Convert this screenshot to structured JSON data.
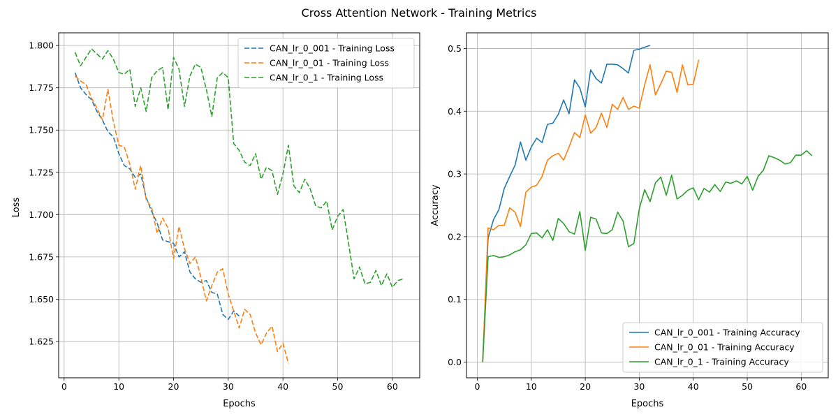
{
  "figure": {
    "suptitle": "Cross Attention Network - Training Metrics"
  },
  "chart_data": [
    {
      "type": "line",
      "title": "",
      "xlabel": "Epochs",
      "ylabel": "Loss",
      "xlim": [
        -1,
        65
      ],
      "ylim": [
        1.6035,
        1.8075
      ],
      "xticks": [
        0,
        10,
        20,
        30,
        40,
        50,
        60
      ],
      "yticks": [
        1.625,
        1.65,
        1.675,
        1.7,
        1.725,
        1.75,
        1.775,
        1.8
      ],
      "ytick_labels": [
        "1.625",
        "1.650",
        "1.675",
        "1.700",
        "1.725",
        "1.750",
        "1.775",
        "1.800"
      ],
      "grid": true,
      "line_style": "dashed",
      "legend": "top-right",
      "series": [
        {
          "name": "CAN_lr_0_001 - Training Loss",
          "color": "#1f77b4",
          "x": [
            2,
            3,
            4,
            5,
            6,
            7,
            8,
            9,
            10,
            11,
            12,
            13,
            14,
            15,
            16,
            17,
            18,
            19,
            20,
            21,
            22,
            23,
            24,
            25,
            26,
            27,
            28,
            29,
            30,
            31,
            32
          ],
          "values": [
            1.784,
            1.775,
            1.771,
            1.768,
            1.761,
            1.756,
            1.749,
            1.746,
            1.736,
            1.729,
            1.727,
            1.722,
            1.724,
            1.71,
            1.702,
            1.695,
            1.685,
            1.684,
            1.683,
            1.675,
            1.678,
            1.666,
            1.662,
            1.66,
            1.661,
            1.654,
            1.653,
            1.641,
            1.638,
            1.643,
            1.64
          ]
        },
        {
          "name": "CAN_lr_0_01 - Training Loss",
          "color": "#ff7f0e",
          "x": [
            2,
            3,
            4,
            5,
            6,
            7,
            8,
            9,
            10,
            11,
            12,
            13,
            14,
            15,
            16,
            17,
            18,
            19,
            20,
            21,
            22,
            23,
            24,
            25,
            26,
            27,
            28,
            29,
            30,
            31,
            32,
            33,
            34,
            35,
            36,
            37,
            38,
            39,
            40,
            41
          ],
          "values": [
            1.782,
            1.779,
            1.777,
            1.769,
            1.763,
            1.756,
            1.774,
            1.755,
            1.741,
            1.74,
            1.73,
            1.715,
            1.729,
            1.709,
            1.704,
            1.689,
            1.698,
            1.692,
            1.674,
            1.693,
            1.68,
            1.671,
            1.675,
            1.663,
            1.649,
            1.658,
            1.666,
            1.668,
            1.653,
            1.643,
            1.633,
            1.644,
            1.641,
            1.63,
            1.623,
            1.63,
            1.634,
            1.619,
            1.624,
            1.612
          ]
        },
        {
          "name": "CAN_lr_0_1 - Training Loss",
          "color": "#2ca02c",
          "x": [
            2,
            3,
            4,
            5,
            6,
            7,
            8,
            9,
            10,
            11,
            12,
            13,
            14,
            15,
            16,
            17,
            18,
            19,
            20,
            21,
            22,
            23,
            24,
            25,
            26,
            27,
            28,
            29,
            30,
            31,
            32,
            33,
            34,
            35,
            36,
            37,
            38,
            39,
            40,
            41,
            42,
            43,
            44,
            45,
            46,
            47,
            48,
            49,
            50,
            51,
            52,
            53,
            54,
            55,
            56,
            57,
            58,
            59,
            60,
            61,
            62
          ],
          "values": [
            1.796,
            1.788,
            1.793,
            1.798,
            1.795,
            1.792,
            1.797,
            1.792,
            1.784,
            1.783,
            1.786,
            1.764,
            1.775,
            1.761,
            1.781,
            1.785,
            1.787,
            1.762,
            1.793,
            1.786,
            1.764,
            1.782,
            1.789,
            1.787,
            1.774,
            1.758,
            1.781,
            1.784,
            1.781,
            1.742,
            1.738,
            1.731,
            1.729,
            1.736,
            1.721,
            1.728,
            1.726,
            1.712,
            1.724,
            1.741,
            1.717,
            1.713,
            1.721,
            1.715,
            1.705,
            1.704,
            1.708,
            1.691,
            1.699,
            1.703,
            1.683,
            1.662,
            1.669,
            1.659,
            1.66,
            1.667,
            1.658,
            1.665,
            1.657,
            1.661,
            1.662
          ]
        }
      ]
    },
    {
      "type": "line",
      "title": "",
      "xlabel": "Epochs",
      "ylabel": "Accuracy",
      "xlim": [
        -2,
        65
      ],
      "ylim": [
        -0.025,
        0.525
      ],
      "xticks": [
        0,
        10,
        20,
        30,
        40,
        50,
        60
      ],
      "yticks": [
        0.0,
        0.1,
        0.2,
        0.3,
        0.4,
        0.5
      ],
      "ytick_labels": [
        "0.0",
        "0.1",
        "0.2",
        "0.3",
        "0.4",
        "0.5"
      ],
      "grid": true,
      "line_style": "solid",
      "legend": "bottom-right",
      "series": [
        {
          "name": "CAN_lr_0_001 - Training Accuracy",
          "color": "#1f77b4",
          "x": [
            1,
            2,
            3,
            4,
            5,
            6,
            7,
            8,
            9,
            10,
            11,
            12,
            13,
            14,
            15,
            16,
            17,
            18,
            19,
            20,
            21,
            22,
            23,
            24,
            25,
            26,
            27,
            28,
            29,
            30,
            31,
            32
          ],
          "values": [
            0.0,
            0.198,
            0.227,
            0.243,
            0.277,
            0.296,
            0.314,
            0.351,
            0.322,
            0.343,
            0.357,
            0.35,
            0.379,
            0.381,
            0.395,
            0.418,
            0.396,
            0.45,
            0.437,
            0.407,
            0.466,
            0.452,
            0.445,
            0.475,
            0.475,
            0.474,
            0.468,
            0.461,
            0.497,
            0.499,
            0.502,
            0.505
          ]
        },
        {
          "name": "CAN_lr_0_01 - Training Accuracy",
          "color": "#ff7f0e",
          "x": [
            1,
            2,
            3,
            4,
            5,
            6,
            7,
            8,
            9,
            10,
            11,
            12,
            13,
            14,
            15,
            16,
            17,
            18,
            19,
            20,
            21,
            22,
            23,
            24,
            25,
            26,
            27,
            28,
            29,
            30,
            31,
            32,
            33,
            34,
            35,
            36,
            37,
            38,
            39,
            40,
            41
          ],
          "values": [
            0.0,
            0.214,
            0.211,
            0.218,
            0.218,
            0.246,
            0.239,
            0.216,
            0.271,
            0.279,
            0.282,
            0.296,
            0.322,
            0.329,
            0.333,
            0.322,
            0.343,
            0.366,
            0.358,
            0.394,
            0.365,
            0.374,
            0.397,
            0.374,
            0.411,
            0.403,
            0.422,
            0.403,
            0.408,
            0.405,
            0.442,
            0.474,
            0.426,
            0.444,
            0.464,
            0.462,
            0.43,
            0.474,
            0.442,
            0.443,
            0.482
          ]
        },
        {
          "name": "CAN_lr_0_1 - Training Accuracy",
          "color": "#2ca02c",
          "x": [
            1,
            2,
            3,
            4,
            5,
            6,
            7,
            8,
            9,
            10,
            11,
            12,
            13,
            14,
            15,
            16,
            17,
            18,
            19,
            20,
            21,
            22,
            23,
            24,
            25,
            26,
            27,
            28,
            29,
            30,
            31,
            32,
            33,
            34,
            35,
            36,
            37,
            38,
            39,
            40,
            41,
            42,
            43,
            44,
            45,
            46,
            47,
            48,
            49,
            50,
            51,
            52,
            53,
            54,
            55,
            56,
            57,
            58,
            59,
            60,
            61,
            62
          ],
          "values": [
            0.0,
            0.168,
            0.17,
            0.167,
            0.168,
            0.171,
            0.176,
            0.179,
            0.187,
            0.205,
            0.206,
            0.198,
            0.211,
            0.194,
            0.229,
            0.221,
            0.208,
            0.204,
            0.24,
            0.178,
            0.231,
            0.228,
            0.206,
            0.205,
            0.211,
            0.239,
            0.225,
            0.184,
            0.189,
            0.244,
            0.275,
            0.256,
            0.286,
            0.295,
            0.266,
            0.298,
            0.26,
            0.266,
            0.274,
            0.278,
            0.259,
            0.277,
            0.271,
            0.283,
            0.272,
            0.287,
            0.285,
            0.289,
            0.284,
            0.296,
            0.274,
            0.296,
            0.306,
            0.329,
            0.326,
            0.322,
            0.316,
            0.318,
            0.33,
            0.33,
            0.337,
            0.329
          ]
        }
      ]
    }
  ]
}
